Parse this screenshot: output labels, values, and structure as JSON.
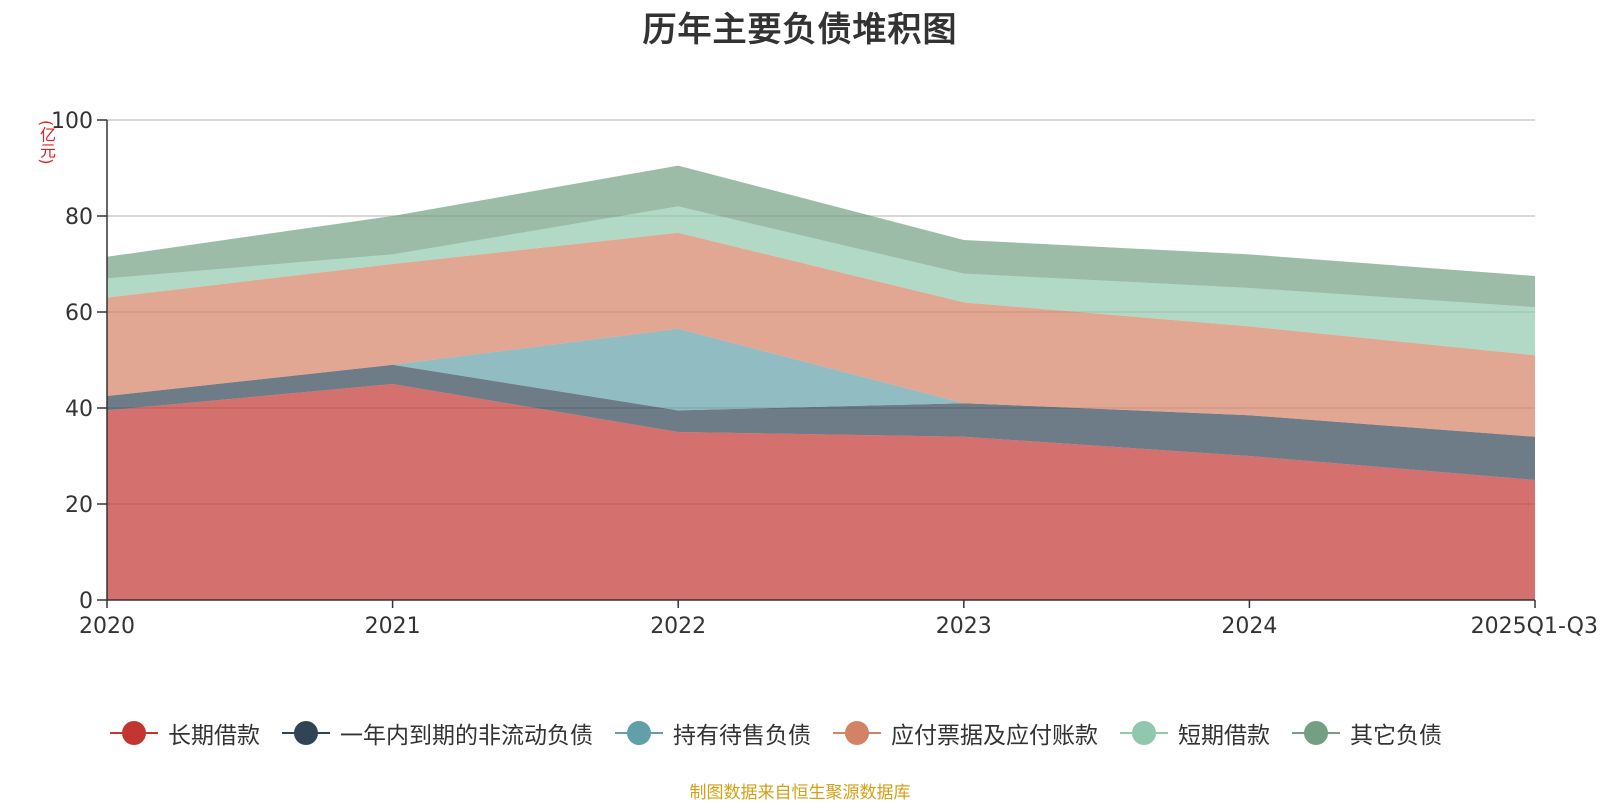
{
  "chart_data": {
    "type": "area",
    "title": "历年主要负债堆积图",
    "ylabel": "(亿元)",
    "xlabel": "",
    "ylim": [
      0,
      100
    ],
    "yticks": [
      0,
      20,
      40,
      60,
      80,
      100
    ],
    "categories": [
      "2020",
      "2021",
      "2022",
      "2023",
      "2024",
      "2025Q1-Q3"
    ],
    "stacked": true,
    "series": [
      {
        "name": "长期借款",
        "color": "#c23531",
        "values": [
          39.5,
          45.0,
          35.0,
          34.0,
          30.0,
          25.0
        ]
      },
      {
        "name": "一年内到期的非流动负债",
        "color": "#2f4554",
        "values": [
          3.0,
          4.0,
          4.5,
          7.0,
          8.5,
          9.0
        ]
      },
      {
        "name": "持有待售负债",
        "color": "#61a0a8",
        "values": [
          0.0,
          0.0,
          17.0,
          0.0,
          0.0,
          0.0
        ]
      },
      {
        "name": "应付票据及应付账款",
        "color": "#d48265",
        "values": [
          20.5,
          21.0,
          20.0,
          21.0,
          18.5,
          17.0
        ]
      },
      {
        "name": "短期借款",
        "color": "#91c7ae",
        "values": [
          4.0,
          2.0,
          5.5,
          6.0,
          8.0,
          10.0
        ]
      },
      {
        "name": "其它负债",
        "color": "#749f83",
        "values": [
          4.5,
          8.0,
          8.5,
          7.0,
          7.0,
          6.5
        ]
      }
    ],
    "legend_position": "bottom"
  },
  "footer": {
    "source": "制图数据来自恒生聚源数据库"
  }
}
